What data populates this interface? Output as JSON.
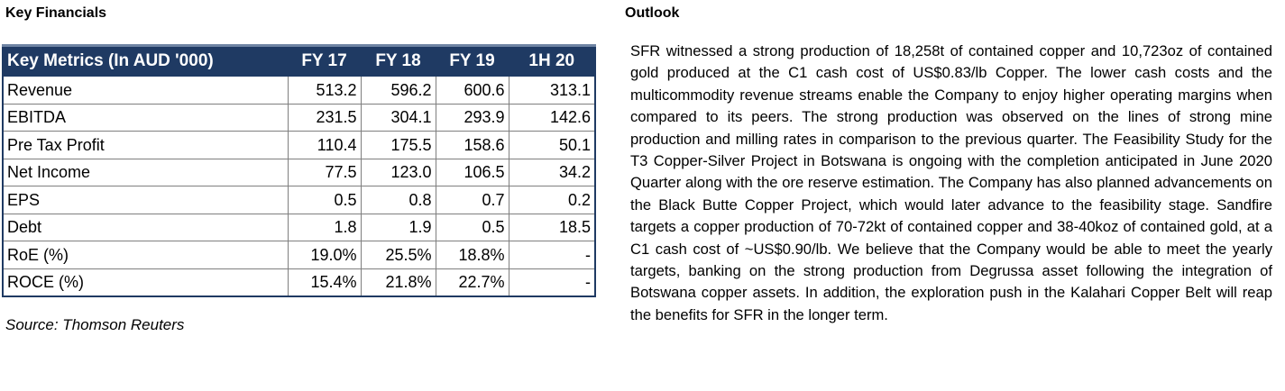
{
  "left_title": "Key Financials",
  "right_title": "Outlook",
  "table": {
    "headers": [
      "Key Metrics (In AUD '000)",
      "FY 17",
      "FY 18",
      "FY 19",
      "1H 20"
    ],
    "rows": [
      [
        "Revenue",
        "513.2",
        "596.2",
        "600.6",
        "313.1"
      ],
      [
        "EBITDA",
        "231.5",
        "304.1",
        "293.9",
        "142.6"
      ],
      [
        "Pre Tax Profit",
        "110.4",
        "175.5",
        "158.6",
        "50.1"
      ],
      [
        "Net Income",
        "77.5",
        "123.0",
        "106.5",
        "34.2"
      ],
      [
        "EPS",
        "0.5",
        "0.8",
        "0.7",
        "0.2"
      ],
      [
        "Debt",
        "1.8",
        "1.9",
        "0.5",
        "18.5"
      ],
      [
        "RoE (%)",
        "19.0%",
        "25.5%",
        "18.8%",
        "-"
      ],
      [
        "ROCE (%)",
        "15.4%",
        "21.8%",
        "22.7%",
        "-"
      ]
    ]
  },
  "source": "Source: Thomson Reuters",
  "outlook_text": "SFR witnessed a strong production of 18,258t of contained copper and 10,723oz of contained gold produced at the C1 cash cost of US$0.83/lb Copper. The lower cash costs and the multicommodity revenue streams enable the Company to enjoy higher operating margins when compared to its peers. The strong production was observed on the lines of strong mine production and milling rates in comparison to the previous quarter. The Feasibility Study for the T3 Copper-Silver Project in Botswana is ongoing with the completion anticipated in June 2020 Quarter along with the ore reserve estimation. The Company has also planned advancements on the Black Butte Copper Project, which would later advance to the feasibility stage. Sandfire targets a copper production of 70-72kt of contained copper and 38-40koz of contained gold, at a C1 cash cost of ~US$0.90/lb. We believe that the Company would be able to meet the yearly targets, banking on the strong production from Degrussa asset following the integration of Botswana copper assets. In addition, the exploration push in the Kalahari Copper Belt will reap the benefits for SFR in the longer term."
}
